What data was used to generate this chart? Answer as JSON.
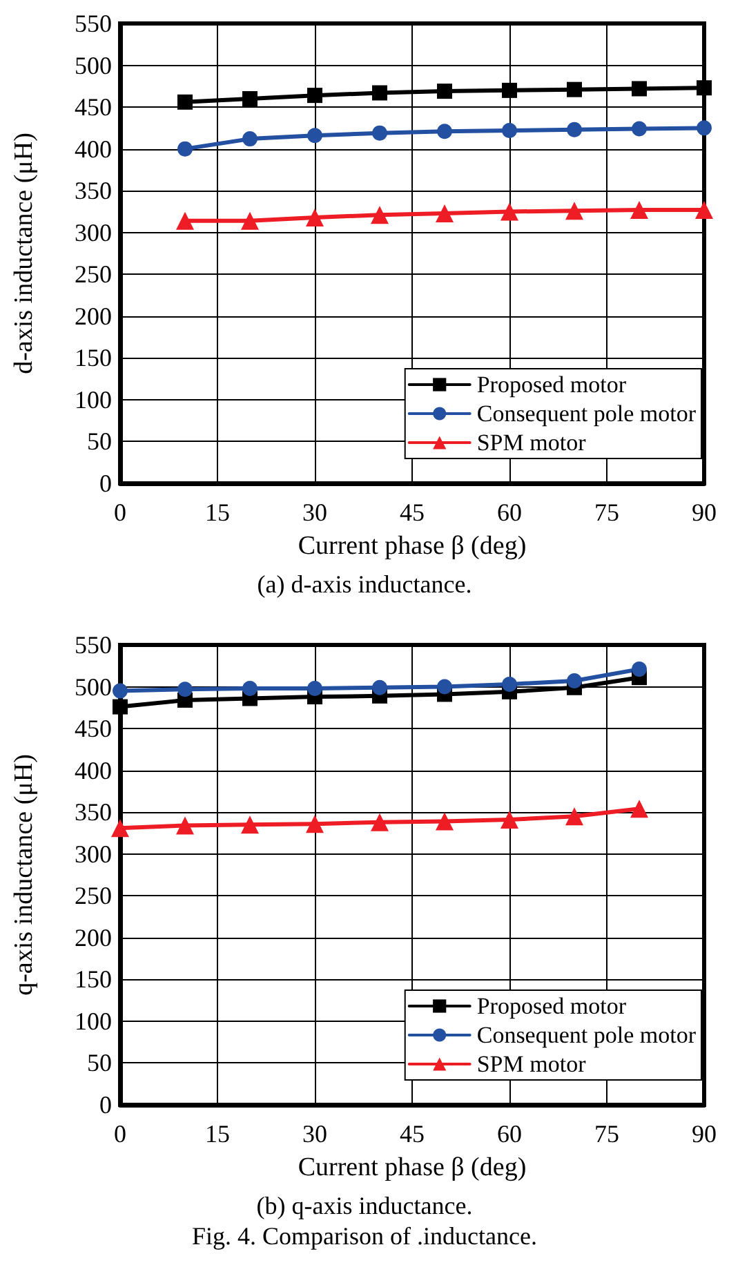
{
  "chart_data": [
    {
      "type": "line",
      "xlabel": "Current phase β (deg)",
      "ylabel": "d-axis inductance (μH)",
      "x": [
        10,
        20,
        30,
        40,
        50,
        60,
        70,
        80,
        90
      ],
      "series": [
        {
          "name": "Proposed motor",
          "color": "#000000",
          "marker": "square",
          "values": [
            456,
            460,
            464,
            467,
            469,
            470,
            471,
            472,
            473
          ]
        },
        {
          "name": "Consequent pole motor",
          "color": "#2350a0",
          "marker": "circle",
          "values": [
            400,
            412,
            416,
            419,
            421,
            422,
            423,
            424,
            425
          ]
        },
        {
          "name": "SPM motor",
          "color": "#ee1c25",
          "marker": "triangle",
          "values": [
            314,
            314,
            318,
            321,
            323,
            325,
            326,
            327,
            327
          ]
        }
      ],
      "xlim": [
        0,
        90
      ],
      "xticks": [
        0,
        15,
        30,
        45,
        60,
        75,
        90
      ],
      "ylim": [
        0,
        550
      ],
      "yticks": [
        0,
        50,
        100,
        150,
        200,
        250,
        300,
        350,
        400,
        450,
        500,
        550
      ],
      "grid": true,
      "legend": "bottom right",
      "line_style": "solid",
      "annotations": [
        "(a) d-axis inductance."
      ]
    },
    {
      "type": "line",
      "xlabel": "Current phase β (deg)",
      "ylabel": "q-axis inductance (μH)",
      "x": [
        0,
        10,
        20,
        30,
        40,
        50,
        60,
        70,
        80
      ],
      "series": [
        {
          "name": "Proposed motor",
          "color": "#000000",
          "marker": "square",
          "values": [
            476,
            484,
            486,
            488,
            489,
            491,
            494,
            499,
            511
          ]
        },
        {
          "name": "Consequent pole motor",
          "color": "#2350a0",
          "marker": "circle",
          "values": [
            495,
            497,
            498,
            498,
            499,
            500,
            503,
            507,
            521
          ]
        },
        {
          "name": "SPM motor",
          "color": "#ee1c25",
          "marker": "triangle",
          "values": [
            331,
            334,
            335,
            336,
            338,
            339,
            341,
            345,
            354
          ]
        }
      ],
      "xlim": [
        0,
        90
      ],
      "xticks": [
        0,
        15,
        30,
        45,
        60,
        75,
        90
      ],
      "ylim": [
        0,
        550
      ],
      "yticks": [
        0,
        50,
        100,
        150,
        200,
        250,
        300,
        350,
        400,
        450,
        500,
        550
      ],
      "grid": true,
      "legend": "bottom right",
      "line_style": "solid",
      "annotations": [
        "(b) q-axis inductance.",
        "Fig. 4. Comparison of .inductance."
      ]
    }
  ]
}
